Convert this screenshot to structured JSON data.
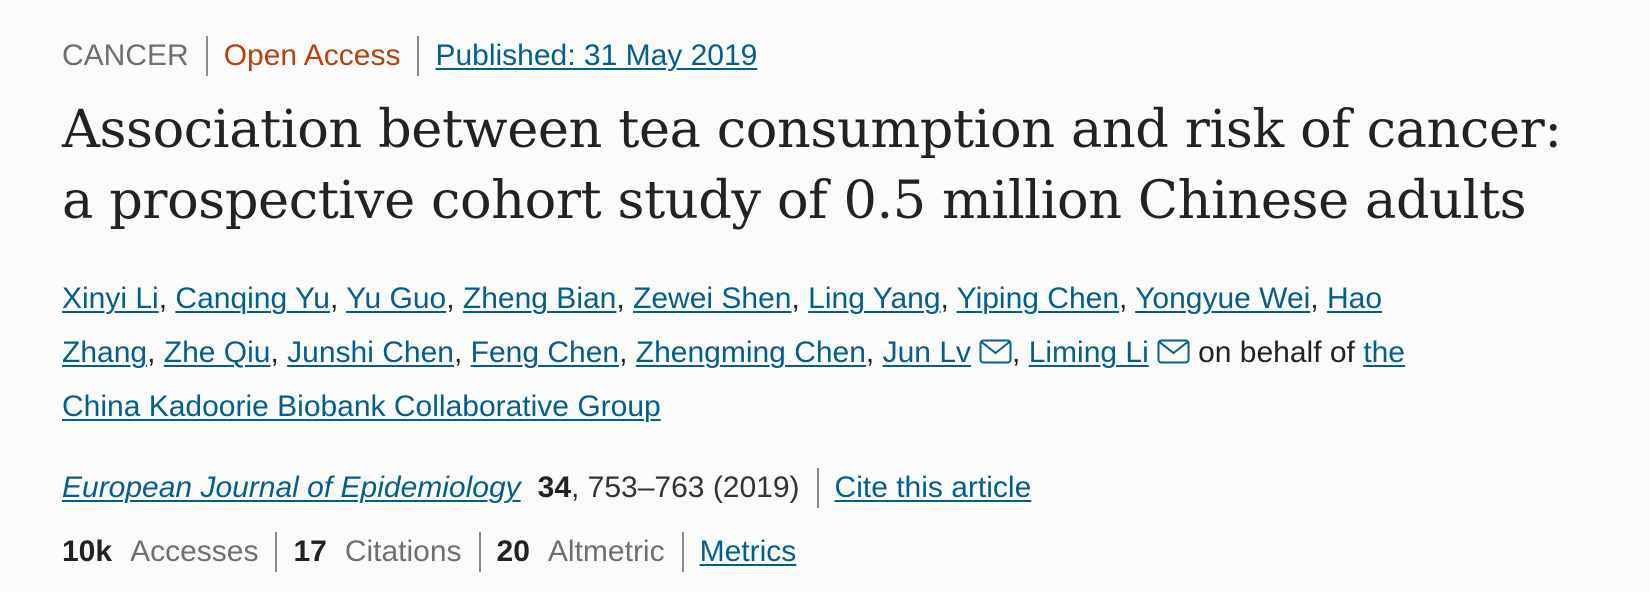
{
  "header": {
    "subject": "CANCER",
    "access": "Open Access",
    "published": "Published: 31 May 2019"
  },
  "title": {
    "line1": "Association between tea consumption and risk of cancer:",
    "line2": "a prospective cohort study of 0.5 million Chinese adults"
  },
  "authors": {
    "names": [
      "Xinyi Li",
      "Canqing Yu",
      "Yu Guo",
      "Zheng Bian",
      "Zewei Shen",
      "Ling Yang",
      "Yiping Chen",
      "Yongyue Wei",
      "Hao",
      "Zhang",
      "Zhe Qiu",
      "Junshi Chen",
      "Feng Chen",
      "Zhengming Chen",
      "Jun Lv",
      "Liming Li"
    ],
    "separator": ",",
    "on_behalf_of": "on behalf of",
    "group_part1": "the",
    "group_part2": "China Kadoorie Biobank Collaborative Group"
  },
  "citation": {
    "journal": "European Journal of Epidemiology",
    "volume": "34",
    "pages_year": ", 753–763 (2019)",
    "cite_link": "Cite this article"
  },
  "metrics": {
    "accesses_count": "10k",
    "accesses_label": "Accesses",
    "citations_count": "17",
    "citations_label": "Citations",
    "altmetric_count": "20",
    "altmetric_label": "Altmetric",
    "metrics_link": "Metrics"
  },
  "colors": {
    "link": "#025e8d",
    "open_access": "#b7410e",
    "muted": "#6f6f6f",
    "text": "#222222",
    "background": "#fbfbfb"
  },
  "icons": {
    "corresponding_author": "envelope-icon"
  }
}
